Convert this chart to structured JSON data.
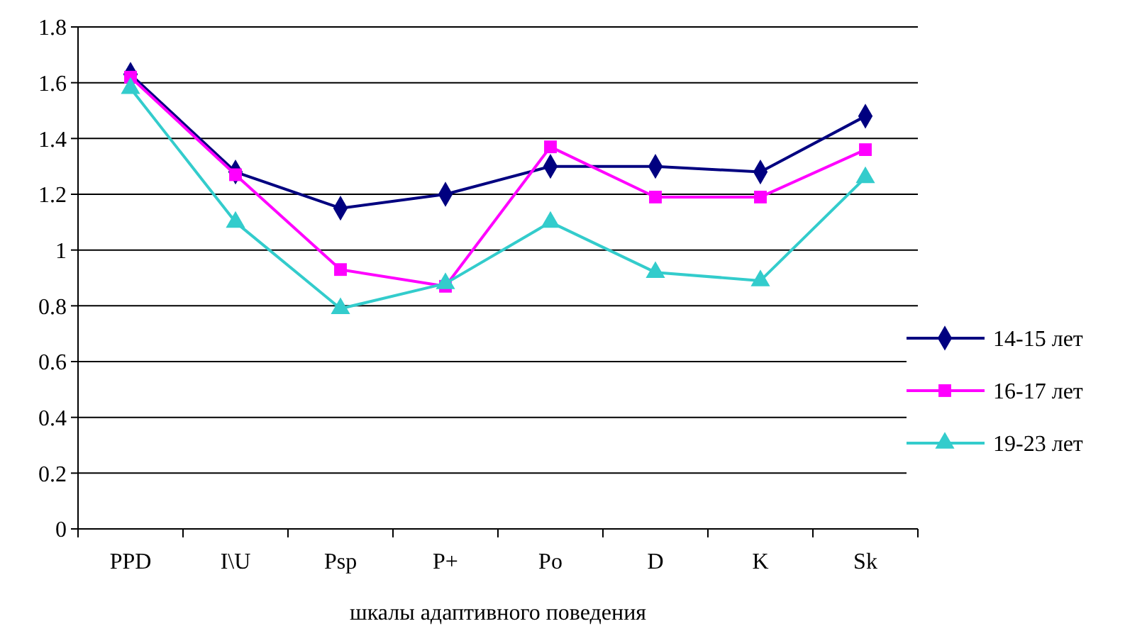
{
  "chart_data": {
    "type": "line",
    "xlabel": "шкалы адаптивного поведения",
    "categories": [
      "PPD",
      "I\\U",
      "Psp",
      "P+",
      "Po",
      "D",
      "K",
      "Sk"
    ],
    "ylim": [
      0,
      1.8
    ],
    "yticks": [
      0,
      0.2,
      0.4,
      0.6,
      0.8,
      1,
      1.2,
      1.4,
      1.6,
      1.8
    ],
    "grid": "y",
    "legend": "right",
    "series": [
      {
        "name": "14-15 лет",
        "color": "#000080",
        "marker": "diamond",
        "values": [
          1.63,
          1.28,
          1.15,
          1.2,
          1.3,
          1.3,
          1.28,
          1.48
        ]
      },
      {
        "name": "16-17 лет",
        "color": "#ff00ff",
        "marker": "square",
        "values": [
          1.62,
          1.27,
          0.93,
          0.87,
          1.37,
          1.19,
          1.19,
          1.36
        ]
      },
      {
        "name": "19-23 лет",
        "color": "#33cccc",
        "marker": "triangle",
        "values": [
          1.58,
          1.1,
          0.79,
          0.88,
          1.1,
          0.92,
          0.89,
          1.26
        ]
      }
    ]
  }
}
